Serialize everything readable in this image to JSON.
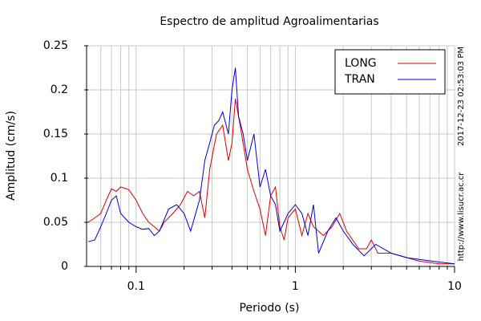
{
  "chart_data": {
    "type": "line",
    "title": "Espectro de amplitud Agroalimentarias",
    "x_label": "Periodo (s)",
    "y_label": "Amplitud (cm/s)",
    "timestamp": "2017-12-23 02:53:03 PM",
    "source": "http://www.lisucr.ac.cr",
    "xscale": "log",
    "xlim": [
      0.05,
      10
    ],
    "xticks": [
      0.1,
      1,
      10
    ],
    "xminorticks": [
      0.06,
      0.07,
      0.08,
      0.09,
      0.2,
      0.3,
      0.4,
      0.5,
      0.6,
      0.7,
      0.8,
      0.9,
      2,
      3,
      4,
      5,
      6,
      7,
      8,
      9
    ],
    "ylim": [
      0,
      0.25
    ],
    "yticks": [
      0,
      0.05,
      0.1,
      0.15,
      0.2,
      0.25
    ],
    "grid": true,
    "legend": "upper right",
    "series": [
      {
        "name": "LONG",
        "color": "#e00000",
        "x": [
          0.05,
          0.055,
          0.06,
          0.065,
          0.07,
          0.075,
          0.08,
          0.09,
          0.1,
          0.11,
          0.12,
          0.13,
          0.14,
          0.15,
          0.17,
          0.19,
          0.21,
          0.23,
          0.25,
          0.27,
          0.29,
          0.32,
          0.35,
          0.38,
          0.4,
          0.42,
          0.45,
          0.5,
          0.55,
          0.6,
          0.65,
          0.7,
          0.75,
          0.8,
          0.85,
          0.9,
          1.0,
          1.1,
          1.2,
          1.3,
          1.5,
          1.7,
          1.9,
          2.1,
          2.5,
          2.8,
          3.0,
          3.3,
          4,
          5,
          6,
          8,
          10
        ],
        "values": [
          0.05,
          0.055,
          0.06,
          0.075,
          0.088,
          0.085,
          0.09,
          0.087,
          0.075,
          0.06,
          0.05,
          0.045,
          0.04,
          0.05,
          0.06,
          0.07,
          0.085,
          0.08,
          0.085,
          0.055,
          0.11,
          0.15,
          0.16,
          0.12,
          0.14,
          0.19,
          0.16,
          0.11,
          0.085,
          0.065,
          0.035,
          0.08,
          0.09,
          0.045,
          0.03,
          0.055,
          0.065,
          0.035,
          0.06,
          0.045,
          0.035,
          0.045,
          0.06,
          0.04,
          0.02,
          0.02,
          0.03,
          0.015,
          0.015,
          0.01,
          0.006,
          0.003,
          0.003
        ]
      },
      {
        "name": "TRAN",
        "color": "#0000d0",
        "x": [
          0.05,
          0.055,
          0.06,
          0.065,
          0.07,
          0.075,
          0.08,
          0.09,
          0.1,
          0.11,
          0.12,
          0.13,
          0.14,
          0.16,
          0.18,
          0.2,
          0.22,
          0.25,
          0.27,
          0.29,
          0.31,
          0.33,
          0.35,
          0.38,
          0.4,
          0.42,
          0.44,
          0.47,
          0.5,
          0.55,
          0.6,
          0.65,
          0.7,
          0.75,
          0.8,
          0.85,
          0.9,
          1.0,
          1.1,
          1.2,
          1.3,
          1.4,
          1.6,
          1.8,
          2.0,
          2.3,
          2.7,
          3.2,
          4,
          5,
          6,
          8,
          10
        ],
        "values": [
          0.028,
          0.03,
          0.045,
          0.06,
          0.075,
          0.08,
          0.06,
          0.05,
          0.045,
          0.042,
          0.043,
          0.035,
          0.04,
          0.065,
          0.07,
          0.06,
          0.04,
          0.075,
          0.12,
          0.14,
          0.16,
          0.165,
          0.175,
          0.15,
          0.2,
          0.225,
          0.17,
          0.15,
          0.12,
          0.15,
          0.09,
          0.11,
          0.08,
          0.07,
          0.04,
          0.05,
          0.06,
          0.07,
          0.06,
          0.035,
          0.07,
          0.015,
          0.04,
          0.055,
          0.04,
          0.025,
          0.012,
          0.025,
          0.015,
          0.01,
          0.008,
          0.005,
          0.003
        ]
      }
    ]
  }
}
